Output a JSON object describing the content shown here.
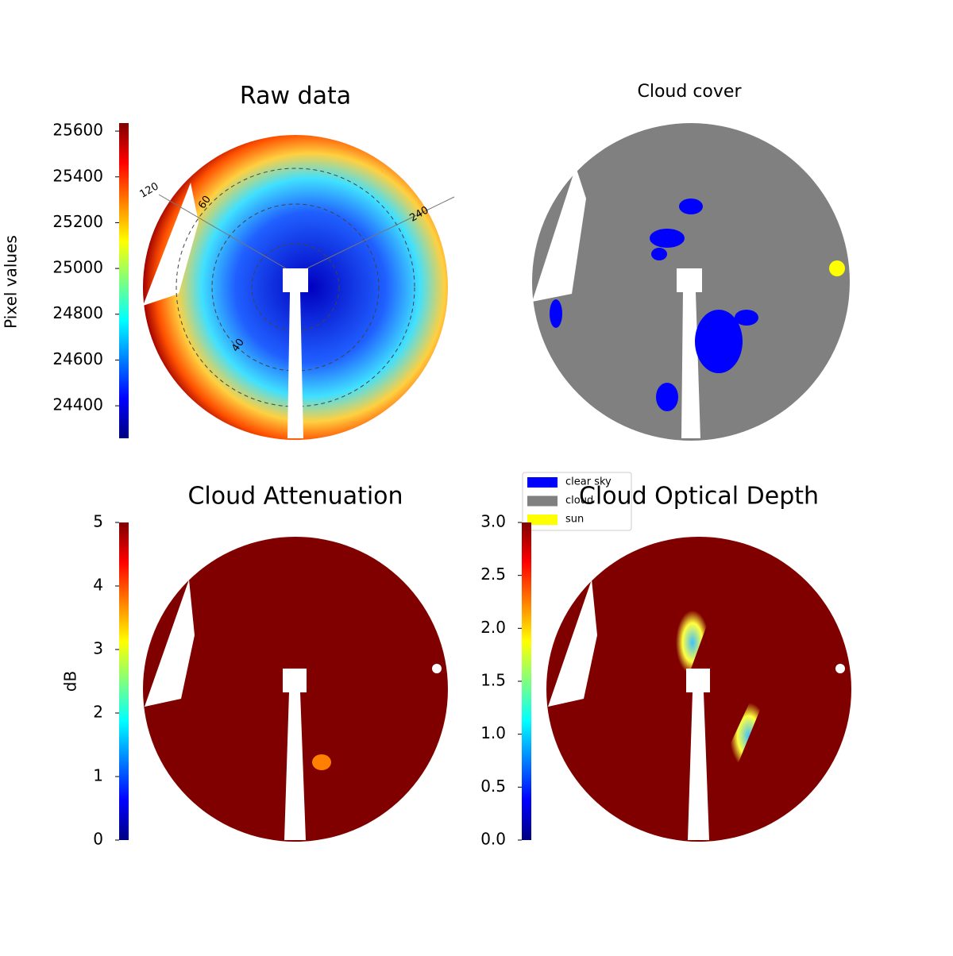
{
  "chart_data": [
    {
      "type": "heatmap",
      "title": "Raw data",
      "colorbar": {
        "label": "Pixel values",
        "colormap": "jet",
        "ylim": [
          24258,
          25635
        ],
        "yticks": [
          24400,
          24600,
          24800,
          25000,
          25200,
          25400,
          25600
        ]
      },
      "polar_angle_labels": [
        120,
        240
      ],
      "polar_radius_labels": [
        60,
        40
      ]
    },
    {
      "type": "categorical-map",
      "title": "Cloud cover",
      "series": [
        {
          "name": "clear sky",
          "color": "#0000ff"
        },
        {
          "name": "cloud",
          "color": "#808080"
        },
        {
          "name": "sun",
          "color": "#ffff00"
        }
      ]
    },
    {
      "type": "heatmap",
      "title": "Cloud Attenuation",
      "colorbar": {
        "label": "dB",
        "colormap": "jet",
        "ylim": [
          0,
          5
        ],
        "yticks": [
          0,
          1,
          2,
          3,
          4,
          5
        ]
      }
    },
    {
      "type": "heatmap",
      "title": "Cloud Optical Depth",
      "colorbar": {
        "colormap": "jet",
        "ylim": [
          0,
          3
        ],
        "yticks": [
          {
            "value": 0,
            "label": "0.0"
          },
          {
            "value": 0.5,
            "label": "0.5"
          },
          {
            "value": 1,
            "label": "1.0"
          },
          {
            "value": 1.5,
            "label": "1.5"
          },
          {
            "value": 2,
            "label": "2.0"
          },
          {
            "value": 2.5,
            "label": "2.5"
          },
          {
            "value": 3,
            "label": "3.0"
          }
        ]
      }
    }
  ]
}
